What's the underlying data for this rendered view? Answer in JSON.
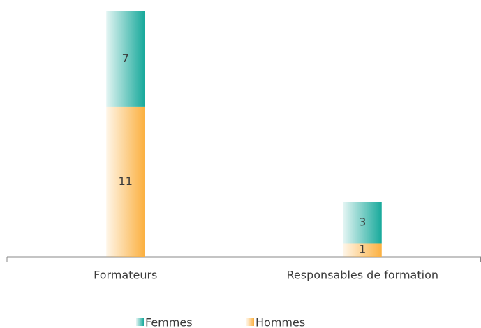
{
  "chart_data": {
    "type": "stacked_bar",
    "categories": [
      "Formateurs",
      "Responsables de formation"
    ],
    "series": [
      {
        "name": "Hommes",
        "color": "#fbb040",
        "values": [
          11,
          1
        ]
      },
      {
        "name": "Femmes",
        "color": "#17a99b",
        "values": [
          7,
          3
        ]
      }
    ],
    "ylim": [
      0,
      18
    ],
    "legend": "bottom"
  }
}
